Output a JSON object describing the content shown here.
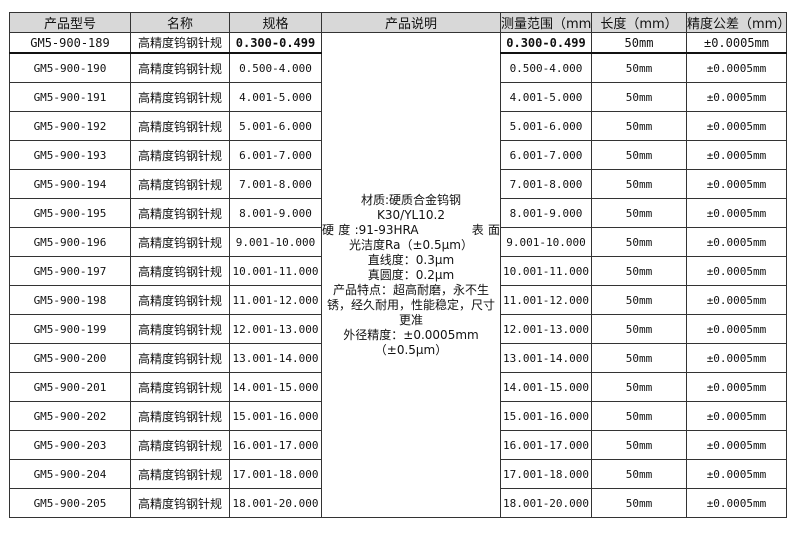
{
  "headers": [
    "产品型号",
    "名称",
    "规格",
    "产品说明",
    "测量范围（mm）",
    "长度（mm）",
    "精度公差（mm）"
  ],
  "description": [
    "材质:硬质合金钨钢",
    "K30/YL10.2",
    "硬度:91-93HRA　　　表面",
    "光洁度Ra（±0.5μm）",
    "直线度：0.3μm",
    "真圆度：0.2μm",
    "产品特点：超高耐磨，永不生锈，经久耐用，性能稳定，尺寸更准",
    "外径精度：±0.0005mm",
    "（±0.5μm）"
  ],
  "rows": [
    {
      "model": "GM5-900-189",
      "name": "高精度钨钢针规",
      "spec": "0.300-0.499",
      "range": "0.300-0.499",
      "length": "50mm",
      "tolerance": "±0.0005mm"
    },
    {
      "model": "GM5-900-190",
      "name": "高精度钨钢针规",
      "spec": "0.500-4.000",
      "range": "0.500-4.000",
      "length": "50mm",
      "tolerance": "±0.0005mm"
    },
    {
      "model": "GM5-900-191",
      "name": "高精度钨钢针规",
      "spec": "4.001-5.000",
      "range": "4.001-5.000",
      "length": "50mm",
      "tolerance": "±0.0005mm"
    },
    {
      "model": "GM5-900-192",
      "name": "高精度钨钢针规",
      "spec": "5.001-6.000",
      "range": "5.001-6.000",
      "length": "50mm",
      "tolerance": "±0.0005mm"
    },
    {
      "model": "GM5-900-193",
      "name": "高精度钨钢针规",
      "spec": "6.001-7.000",
      "range": "6.001-7.000",
      "length": "50mm",
      "tolerance": "±0.0005mm"
    },
    {
      "model": "GM5-900-194",
      "name": "高精度钨钢针规",
      "spec": "7.001-8.000",
      "range": "7.001-8.000",
      "length": "50mm",
      "tolerance": "±0.0005mm"
    },
    {
      "model": "GM5-900-195",
      "name": "高精度钨钢针规",
      "spec": "8.001-9.000",
      "range": "8.001-9.000",
      "length": "50mm",
      "tolerance": "±0.0005mm"
    },
    {
      "model": "GM5-900-196",
      "name": "高精度钨钢针规",
      "spec": "9.001-10.000",
      "range": "9.001-10.000",
      "length": "50mm",
      "tolerance": "±0.0005mm"
    },
    {
      "model": "GM5-900-197",
      "name": "高精度钨钢针规",
      "spec": "10.001-11.000",
      "range": "10.001-11.000",
      "length": "50mm",
      "tolerance": "±0.0005mm"
    },
    {
      "model": "GM5-900-198",
      "name": "高精度钨钢针规",
      "spec": "11.001-12.000",
      "range": "11.001-12.000",
      "length": "50mm",
      "tolerance": "±0.0005mm"
    },
    {
      "model": "GM5-900-199",
      "name": "高精度钨钢针规",
      "spec": "12.001-13.000",
      "range": "12.001-13.000",
      "length": "50mm",
      "tolerance": "±0.0005mm"
    },
    {
      "model": "GM5-900-200",
      "name": "高精度钨钢针规",
      "spec": "13.001-14.000",
      "range": "13.001-14.000",
      "length": "50mm",
      "tolerance": "±0.0005mm"
    },
    {
      "model": "GM5-900-201",
      "name": "高精度钨钢针规",
      "spec": "14.001-15.000",
      "range": "14.001-15.000",
      "length": "50mm",
      "tolerance": "±0.0005mm"
    },
    {
      "model": "GM5-900-202",
      "name": "高精度钨钢针规",
      "spec": "15.001-16.000",
      "range": "15.001-16.000",
      "length": "50mm",
      "tolerance": "±0.0005mm"
    },
    {
      "model": "GM5-900-203",
      "name": "高精度钨钢针规",
      "spec": "16.001-17.000",
      "range": "16.001-17.000",
      "length": "50mm",
      "tolerance": "±0.0005mm"
    },
    {
      "model": "GM5-900-204",
      "name": "高精度钨钢针规",
      "spec": "17.001-18.000",
      "range": "17.001-18.000",
      "length": "50mm",
      "tolerance": "±0.0005mm"
    },
    {
      "model": "GM5-900-205",
      "name": "高精度钨钢针规",
      "spec": "18.001-20.000",
      "range": "18.001-20.000",
      "length": "50mm",
      "tolerance": "±0.0005mm"
    }
  ]
}
